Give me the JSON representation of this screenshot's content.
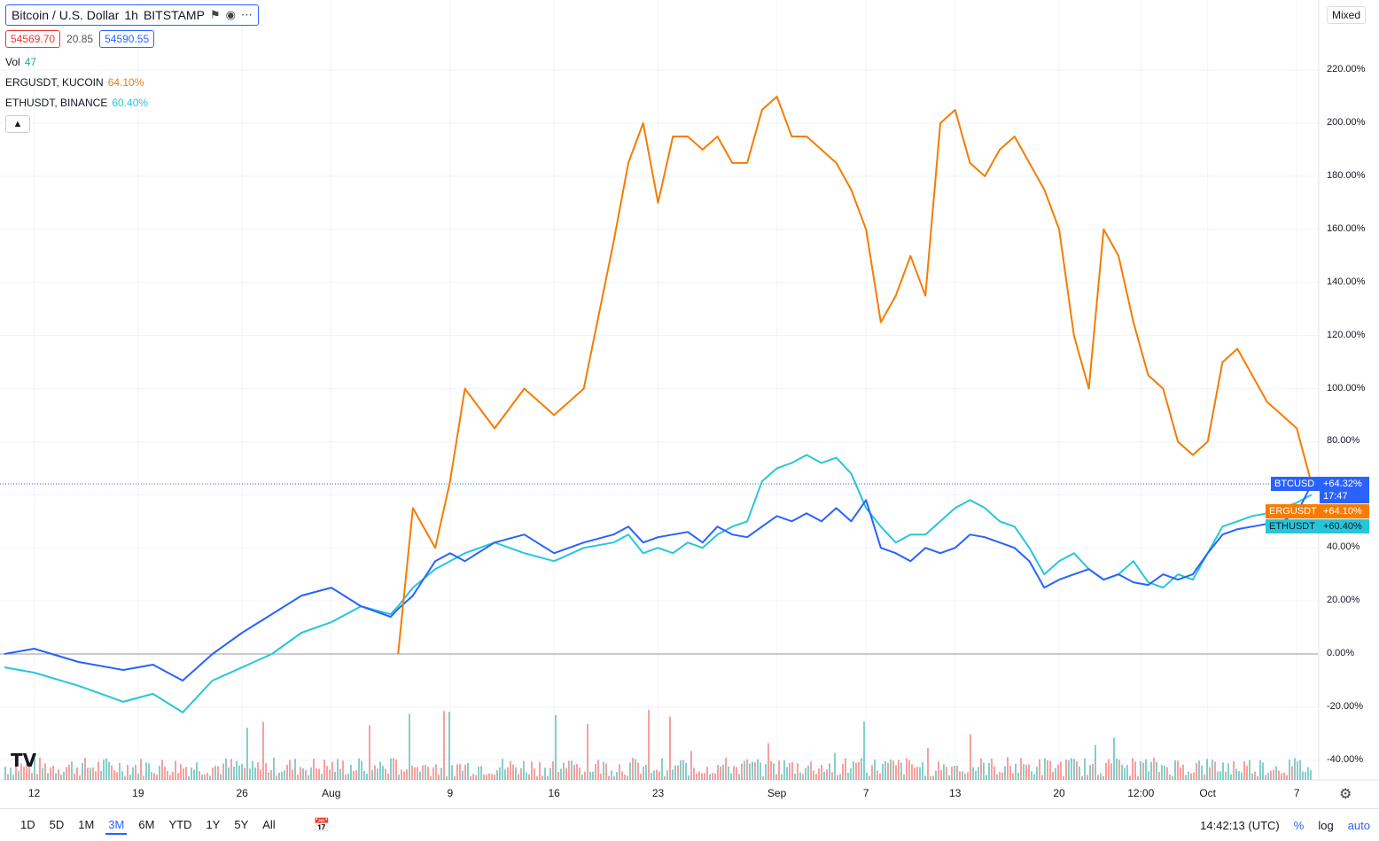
{
  "legend": {
    "title": "Bitcoin / U.S. Dollar",
    "interval": "1h",
    "exchange": "BITSTAMP",
    "bid": "54569.70",
    "spread": "20.85",
    "ask": "54590.55",
    "vol_label": "Vol",
    "vol_value": "47",
    "comp1_label": "ERGUSDT, KUCOIN",
    "comp1_value": "64.10%",
    "comp2_label": "ETHUSDT, BINANCE",
    "comp2_value": "60.40%",
    "icons": [
      "eye-icon",
      "more-icon",
      "chevron-up-icon"
    ]
  },
  "scale_mode": "Mixed",
  "badges": {
    "btc_name": "BTCUSD",
    "btc_value": "+64.32%",
    "btc_time": "17:47",
    "erg_name": "ERGUSDT",
    "erg_value": "+64.10%",
    "eth_name": "ETHUSDT",
    "eth_value": "+60.40%"
  },
  "toolbar": {
    "ranges": [
      "1D",
      "5D",
      "1M",
      "3M",
      "6M",
      "YTD",
      "1Y",
      "5Y",
      "All"
    ],
    "active_range": "3M",
    "clock": "14:42:13 (UTC)",
    "percent": "%",
    "log": "log",
    "auto": "auto"
  },
  "colors": {
    "btc": "#2962ff",
    "erg": "#f57c00",
    "eth": "#26c6da",
    "vol_up": "#26a69a",
    "vol_down": "#ef5350"
  },
  "chart_data": {
    "type": "line",
    "y_unit": "%",
    "ylim": [
      -45,
      228
    ],
    "y_ticks": [
      "220.00%",
      "200.00%",
      "180.00%",
      "160.00%",
      "140.00%",
      "120.00%",
      "100.00%",
      "80.00%",
      "60.00%",
      "40.00%",
      "20.00%",
      "0.00%",
      "-20.00%",
      "-40.00%"
    ],
    "x_tick_labels": [
      "12",
      "19",
      "26",
      "Aug",
      "9",
      "16",
      "23",
      "Sep",
      "7",
      "13",
      "20",
      "12:00",
      "Oct",
      "7"
    ],
    "x_ticks_days": [
      2,
      9,
      16,
      22,
      30,
      37,
      44,
      52,
      58,
      64,
      71,
      76.5,
      81,
      87
    ],
    "x_days": [
      0,
      2,
      5,
      8,
      10,
      12,
      14,
      16,
      18,
      20,
      22,
      24,
      26,
      26.5,
      27.5,
      29,
      30,
      31,
      33,
      35,
      37,
      39,
      41,
      42,
      43,
      44,
      45,
      46,
      47,
      48,
      49,
      50,
      51,
      52,
      53,
      54,
      55,
      56,
      57,
      58,
      59,
      60,
      61,
      62,
      63,
      64,
      65,
      66,
      67,
      68,
      69,
      70,
      71,
      72,
      73,
      74,
      75,
      76,
      77,
      78,
      79,
      80,
      81,
      82,
      83,
      84,
      85,
      86,
      87,
      88
    ],
    "series": [
      {
        "name": "ERGUSDT",
        "values": [
          null,
          null,
          null,
          null,
          null,
          null,
          null,
          null,
          null,
          null,
          null,
          null,
          null,
          0,
          55,
          40,
          65,
          100,
          85,
          100,
          90,
          100,
          155,
          185,
          200,
          170,
          195,
          195,
          190,
          195,
          185,
          185,
          205,
          210,
          195,
          195,
          190,
          185,
          175,
          160,
          125,
          135,
          150,
          135,
          200,
          205,
          185,
          180,
          190,
          195,
          185,
          175,
          160,
          120,
          100,
          160,
          150,
          125,
          105,
          100,
          80,
          75,
          80,
          110,
          115,
          105,
          95,
          90,
          85,
          64
        ]
      },
      {
        "name": "BTCUSD",
        "values": [
          0,
          2,
          -3,
          -6,
          -4,
          -10,
          0,
          8,
          15,
          22,
          25,
          18,
          14,
          17,
          22,
          35,
          38,
          35,
          42,
          45,
          38,
          42,
          45,
          48,
          42,
          44,
          45,
          46,
          42,
          48,
          45,
          44,
          48,
          52,
          50,
          53,
          50,
          55,
          50,
          58,
          40,
          38,
          35,
          40,
          38,
          40,
          45,
          44,
          42,
          40,
          35,
          25,
          28,
          30,
          32,
          28,
          30,
          27,
          26,
          30,
          28,
          30,
          38,
          45,
          47,
          48,
          49,
          50,
          53,
          64
        ]
      },
      {
        "name": "ETHUSDT",
        "values": [
          -5,
          -7,
          -12,
          -18,
          -15,
          -22,
          -10,
          -5,
          0,
          8,
          12,
          18,
          15,
          18,
          25,
          32,
          35,
          38,
          42,
          38,
          35,
          40,
          42,
          45,
          38,
          40,
          38,
          42,
          40,
          45,
          48,
          50,
          65,
          70,
          72,
          75,
          72,
          74,
          68,
          55,
          48,
          42,
          45,
          45,
          50,
          55,
          58,
          55,
          50,
          48,
          40,
          30,
          35,
          38,
          32,
          28,
          30,
          35,
          27,
          25,
          30,
          28,
          38,
          48,
          50,
          52,
          53,
          55,
          57,
          60
        ]
      }
    ],
    "volume": {
      "series_name": "Vol",
      "last": 47
    }
  }
}
